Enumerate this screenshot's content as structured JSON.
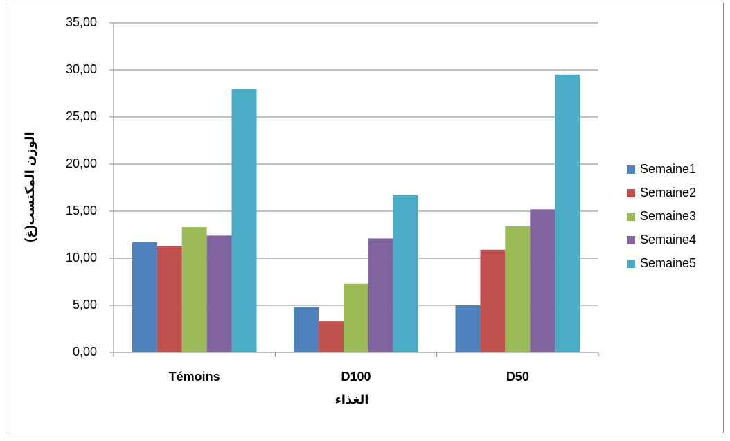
{
  "chart_data": {
    "type": "bar",
    "categories": [
      "Témoins",
      "D100",
      "D50"
    ],
    "series": [
      {
        "name": "Semaine1",
        "color": "#4f81bd",
        "values": [
          11.7,
          4.8,
          5.0
        ]
      },
      {
        "name": "Semaine2",
        "color": "#c0504d",
        "values": [
          11.3,
          3.3,
          10.9
        ]
      },
      {
        "name": "Semaine3",
        "color": "#9bbb59",
        "values": [
          13.3,
          7.3,
          13.4
        ]
      },
      {
        "name": "Semaine4",
        "color": "#8064a2",
        "values": [
          12.4,
          12.1,
          15.2
        ]
      },
      {
        "name": "Semaine5",
        "color": "#4bacc6",
        "values": [
          28.0,
          16.7,
          29.5
        ]
      }
    ],
    "xlabel": "الغذاء",
    "ylabel": "الوزن المكتسب(غ)",
    "ylim": [
      0,
      35
    ],
    "yticks": [
      {
        "value": 0,
        "label": "0,00"
      },
      {
        "value": 5,
        "label": "5,00"
      },
      {
        "value": 10,
        "label": "10,00"
      },
      {
        "value": 15,
        "label": "15,00"
      },
      {
        "value": 20,
        "label": "20,00"
      },
      {
        "value": 25,
        "label": "25,00"
      },
      {
        "value": 30,
        "label": "30,00"
      },
      {
        "value": 35,
        "label": "35,00"
      }
    ],
    "grid": true,
    "legend": "right"
  }
}
